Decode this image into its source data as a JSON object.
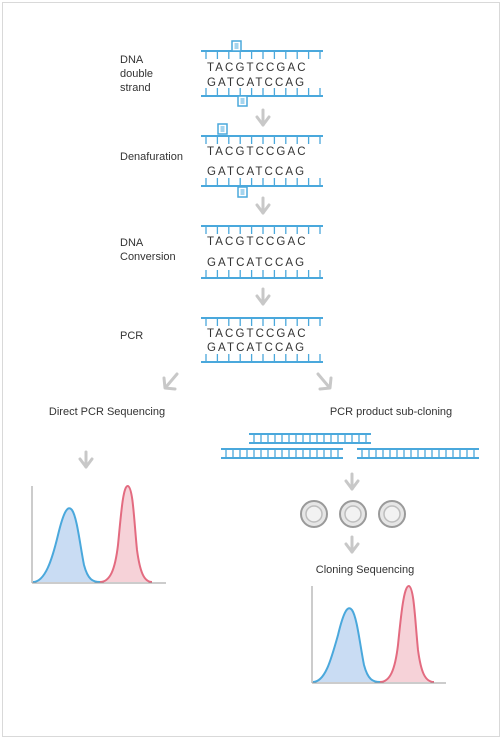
{
  "steps": [
    {
      "label_lines": [
        "DNA",
        "double",
        "strand"
      ],
      "top": "TACGTCCGAC",
      "bottom": "GATCATCCAG"
    },
    {
      "label_lines": [
        "Denafuration"
      ],
      "top": "TACGTCCGAC",
      "bottom": "GATCATCCAG"
    },
    {
      "label_lines": [
        "DNA",
        "Conversion"
      ],
      "top": "TACGTCCGAC",
      "bottom": "GATCATCCAG"
    },
    {
      "label_lines": [
        "PCR"
      ],
      "top": "TACGTCCGAC",
      "bottom": "GATCATCCAG"
    }
  ],
  "branches": {
    "left": "Direct PCR Sequencing",
    "right": "PCR product sub-cloning",
    "cloning": "Cloning Sequencing"
  },
  "colors": {
    "strand": "#4aa8dc",
    "arrow": "#c8c8c8",
    "blue_peak_fill": "#c9dcf3",
    "blue_peak_line": "#4aa8dc",
    "red_peak_fill": "#f6d2d8",
    "red_peak_line": "#e36b80",
    "colony": "#9a9a9a"
  }
}
